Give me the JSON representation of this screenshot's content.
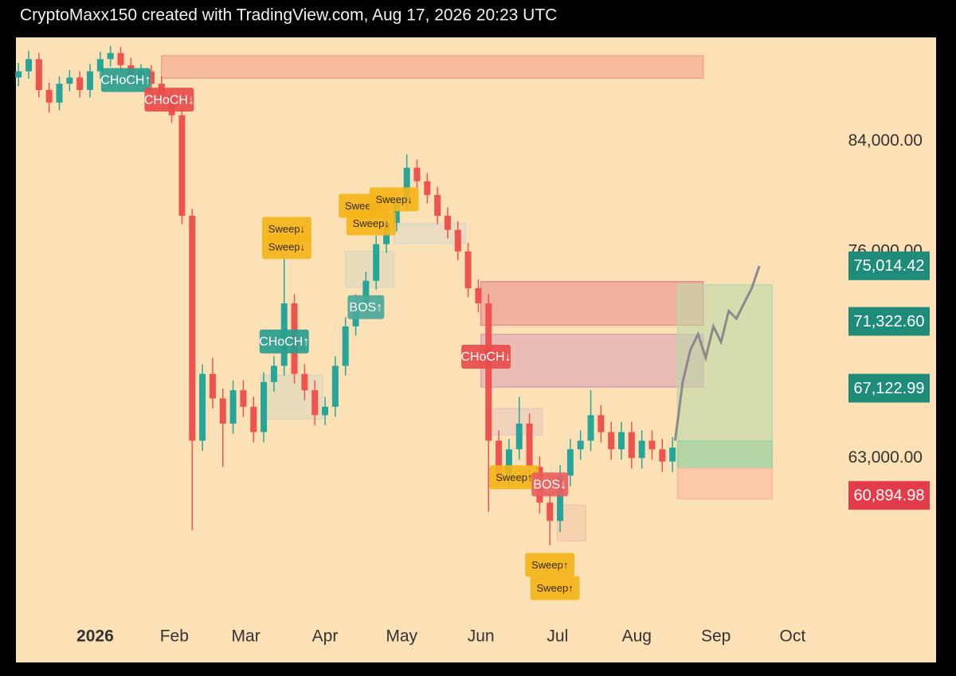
{
  "chart_data": {
    "type": "candlestick",
    "title": "CryptoMaxx150 created with TradingView.com, Aug 17, 2026 20:23 UTC",
    "log_scale": true,
    "up_color": "#26a69a",
    "down_color": "#ef5350",
    "xlim": [
      -31,
      293
    ],
    "ylim": [
      54330,
      92300
    ],
    "xticks": [
      {
        "value": 0,
        "label": "2026"
      },
      {
        "value": 31,
        "label": "Feb"
      },
      {
        "value": 59,
        "label": "Mar"
      },
      {
        "value": 90,
        "label": "Apr"
      },
      {
        "value": 120,
        "label": "May"
      },
      {
        "value": 151,
        "label": "Jun"
      },
      {
        "value": 181,
        "label": "Jul"
      },
      {
        "value": 212,
        "label": "Aug"
      },
      {
        "value": 243,
        "label": "Sep"
      },
      {
        "value": 273,
        "label": "Oct"
      }
    ],
    "yticks": [
      {
        "value": 84000,
        "label": "84,000.00"
      },
      {
        "value": 76000,
        "label": "76,000.00"
      },
      {
        "value": 63000,
        "label": "63,000.00"
      }
    ],
    "candles": {
      "x": [
        -30,
        -26,
        -22,
        -18,
        -14,
        -10,
        -6,
        -2,
        2,
        6,
        10,
        14,
        18,
        22,
        26,
        30,
        34,
        38,
        42,
        46,
        50,
        54,
        58,
        62,
        66,
        70,
        74,
        78,
        82,
        86,
        90,
        94,
        98,
        102,
        106,
        110,
        114,
        118,
        122,
        126,
        130,
        134,
        138,
        142,
        146,
        150,
        154,
        158,
        162,
        166,
        170,
        174,
        178,
        182,
        186,
        190,
        194,
        198,
        202,
        206,
        210,
        214,
        218,
        222,
        226
      ],
      "open": [
        89000,
        89500,
        90500,
        88000,
        87000,
        88500,
        89000,
        88000,
        89500,
        90500,
        91000,
        90000,
        89000,
        89500,
        88500,
        87500,
        86000,
        78500,
        64000,
        68000,
        66500,
        65000,
        67000,
        66000,
        64500,
        67500,
        68500,
        72500,
        68000,
        67000,
        65500,
        66000,
        68500,
        71000,
        72500,
        74000,
        76500,
        78000,
        79500,
        82000,
        81000,
        80000,
        78500,
        77500,
        76000,
        73500,
        72500,
        64000,
        62000,
        63500,
        65000,
        62500,
        60500,
        59500,
        62000,
        63500,
        64000,
        65500,
        64500,
        63500,
        64500,
        63000,
        64000,
        63500,
        62800
      ],
      "high": [
        90200,
        91200,
        91000,
        88600,
        89100,
        89600,
        89500,
        90100,
        91100,
        91600,
        91500,
        90600,
        90100,
        90000,
        89100,
        88000,
        86500,
        79000,
        68600,
        69000,
        67100,
        67600,
        67600,
        66600,
        68100,
        69100,
        75500,
        73100,
        68600,
        67600,
        66600,
        69100,
        71600,
        73100,
        74600,
        77100,
        78600,
        80100,
        83000,
        82600,
        81600,
        80600,
        79100,
        78100,
        76600,
        74100,
        73100,
        64600,
        64100,
        66600,
        65600,
        63100,
        61100,
        62600,
        64100,
        64600,
        67000,
        66100,
        65100,
        65100,
        65100,
        64600,
        64600,
        64100,
        64200
      ],
      "low": [
        88300,
        88900,
        87400,
        86200,
        86400,
        87900,
        87400,
        87400,
        88900,
        89900,
        89400,
        88400,
        88400,
        87900,
        86900,
        85400,
        77900,
        59000,
        63400,
        65900,
        62500,
        64400,
        65400,
        63900,
        63900,
        66900,
        67900,
        67400,
        66400,
        64900,
        64900,
        65400,
        67900,
        70400,
        71900,
        73400,
        75900,
        77400,
        78900,
        80400,
        79400,
        77900,
        76900,
        75400,
        72900,
        71900,
        60000,
        61400,
        61400,
        62900,
        61900,
        59900,
        58200,
        58900,
        61400,
        62900,
        63400,
        63900,
        62900,
        62900,
        62400,
        62400,
        62900,
        62200,
        62200
      ],
      "close": [
        89500,
        90500,
        88000,
        87000,
        88500,
        89000,
        88000,
        89500,
        90500,
        91000,
        90000,
        89000,
        89500,
        88500,
        87500,
        86000,
        78500,
        64000,
        68000,
        66500,
        65000,
        67000,
        66000,
        64500,
        67500,
        68500,
        72500,
        68000,
        67000,
        65500,
        66000,
        68500,
        71000,
        72500,
        74000,
        76500,
        78000,
        79500,
        82000,
        81000,
        80000,
        78500,
        77500,
        76000,
        73500,
        72500,
        64000,
        62000,
        63500,
        65000,
        62500,
        60500,
        59500,
        62000,
        63500,
        64000,
        65500,
        64500,
        63500,
        64500,
        63000,
        64000,
        63500,
        62800,
        63600
      ]
    },
    "projection": {
      "color": "#8a8a8a",
      "x": [
        227,
        230,
        233,
        236,
        239,
        242,
        245,
        248,
        251,
        254,
        257,
        260
      ],
      "values": [
        64000,
        67500,
        69500,
        70500,
        69000,
        71000,
        70000,
        72000,
        71500,
        72500,
        73500,
        75000
      ]
    },
    "zones": [
      {
        "x": [
          26,
          238
        ],
        "y": [
          90770,
          88950
        ],
        "color": "#f2a08a"
      },
      {
        "x": [
          151,
          238
        ],
        "y": [
          73940,
          71080
        ],
        "color": "#e98a8a"
      },
      {
        "x": [
          151,
          238
        ],
        "y": [
          70480,
          67200
        ],
        "color": "#d8a0b4"
      },
      {
        "x": [
          65,
          89
        ],
        "y": [
          67930,
          65280
        ],
        "color": "#d8d8c0"
      },
      {
        "x": [
          98,
          117
        ],
        "y": [
          76000,
          73570
        ],
        "color": "#d8d8c0"
      },
      {
        "x": [
          117,
          145
        ],
        "y": [
          77960,
          76560
        ],
        "color": "#d8d8c8"
      },
      {
        "x": [
          153,
          175
        ],
        "y": [
          65890,
          64340
        ],
        "color": "#e8c8c0"
      },
      {
        "x": [
          181,
          192
        ],
        "y": [
          60360,
          58430
        ],
        "color": "#f0c8a8"
      },
      {
        "x": [
          228,
          265
        ],
        "y": [
          73730,
          62410
        ],
        "color": "#b8d8a8"
      },
      {
        "x": [
          228,
          265
        ],
        "y": [
          63970,
          62410
        ],
        "color": "#98d0a0"
      },
      {
        "x": [
          228,
          265
        ],
        "y": [
          62410,
          60710
        ],
        "color": "#f8b8a0"
      }
    ],
    "annotations": [
      {
        "text": "CHoCH↑",
        "x": 12,
        "y": 88800,
        "color": "#2a9d8f"
      },
      {
        "text": "CHoCH↓",
        "x": 29,
        "y": 87230,
        "color": "#e84c4c"
      },
      {
        "text": "Sweep↓",
        "x": 75,
        "y": 77570,
        "color": "#f4b41a"
      },
      {
        "text": "Sweep↓",
        "x": 75,
        "y": 76300,
        "color": "#f4b41a"
      },
      {
        "text": "CHoCH↑",
        "x": 74,
        "y": 70030,
        "color": "#2a9d8f"
      },
      {
        "text": "BOS↑",
        "x": 106,
        "y": 72250,
        "color": "#4aa89a"
      },
      {
        "text": "Sweep↓",
        "x": 105,
        "y": 79210,
        "color": "#f4b41a"
      },
      {
        "text": "Sweep↓",
        "x": 108,
        "y": 77960,
        "color": "#f4b41a"
      },
      {
        "text": "Sweep↓",
        "x": 117,
        "y": 79680,
        "color": "#f4b41a"
      },
      {
        "text": "CHoCH↓",
        "x": 153,
        "y": 69070,
        "color": "#e84c4c"
      },
      {
        "text": "Sweep↑",
        "x": 164,
        "y": 61910,
        "color": "#f4b41a"
      },
      {
        "text": "BOS↓",
        "x": 178,
        "y": 61510,
        "color": "#e86060"
      },
      {
        "text": "Sweep↑",
        "x": 178,
        "y": 57170,
        "color": "#f4b41a"
      },
      {
        "text": "Sweep↑",
        "x": 180,
        "y": 55980,
        "color": "#f4b41a"
      }
    ],
    "price_labels": [
      {
        "value": 75014.42,
        "label": "75,014.42",
        "color": "#1e8c78"
      },
      {
        "value": 71322.6,
        "label": "71,322.60",
        "color": "#1e8c78"
      },
      {
        "value": 67122.99,
        "label": "67,122.99",
        "color": "#1e8c78"
      },
      {
        "value": 60894.98,
        "label": "60,894.98",
        "color": "#e23b4a"
      }
    ]
  }
}
